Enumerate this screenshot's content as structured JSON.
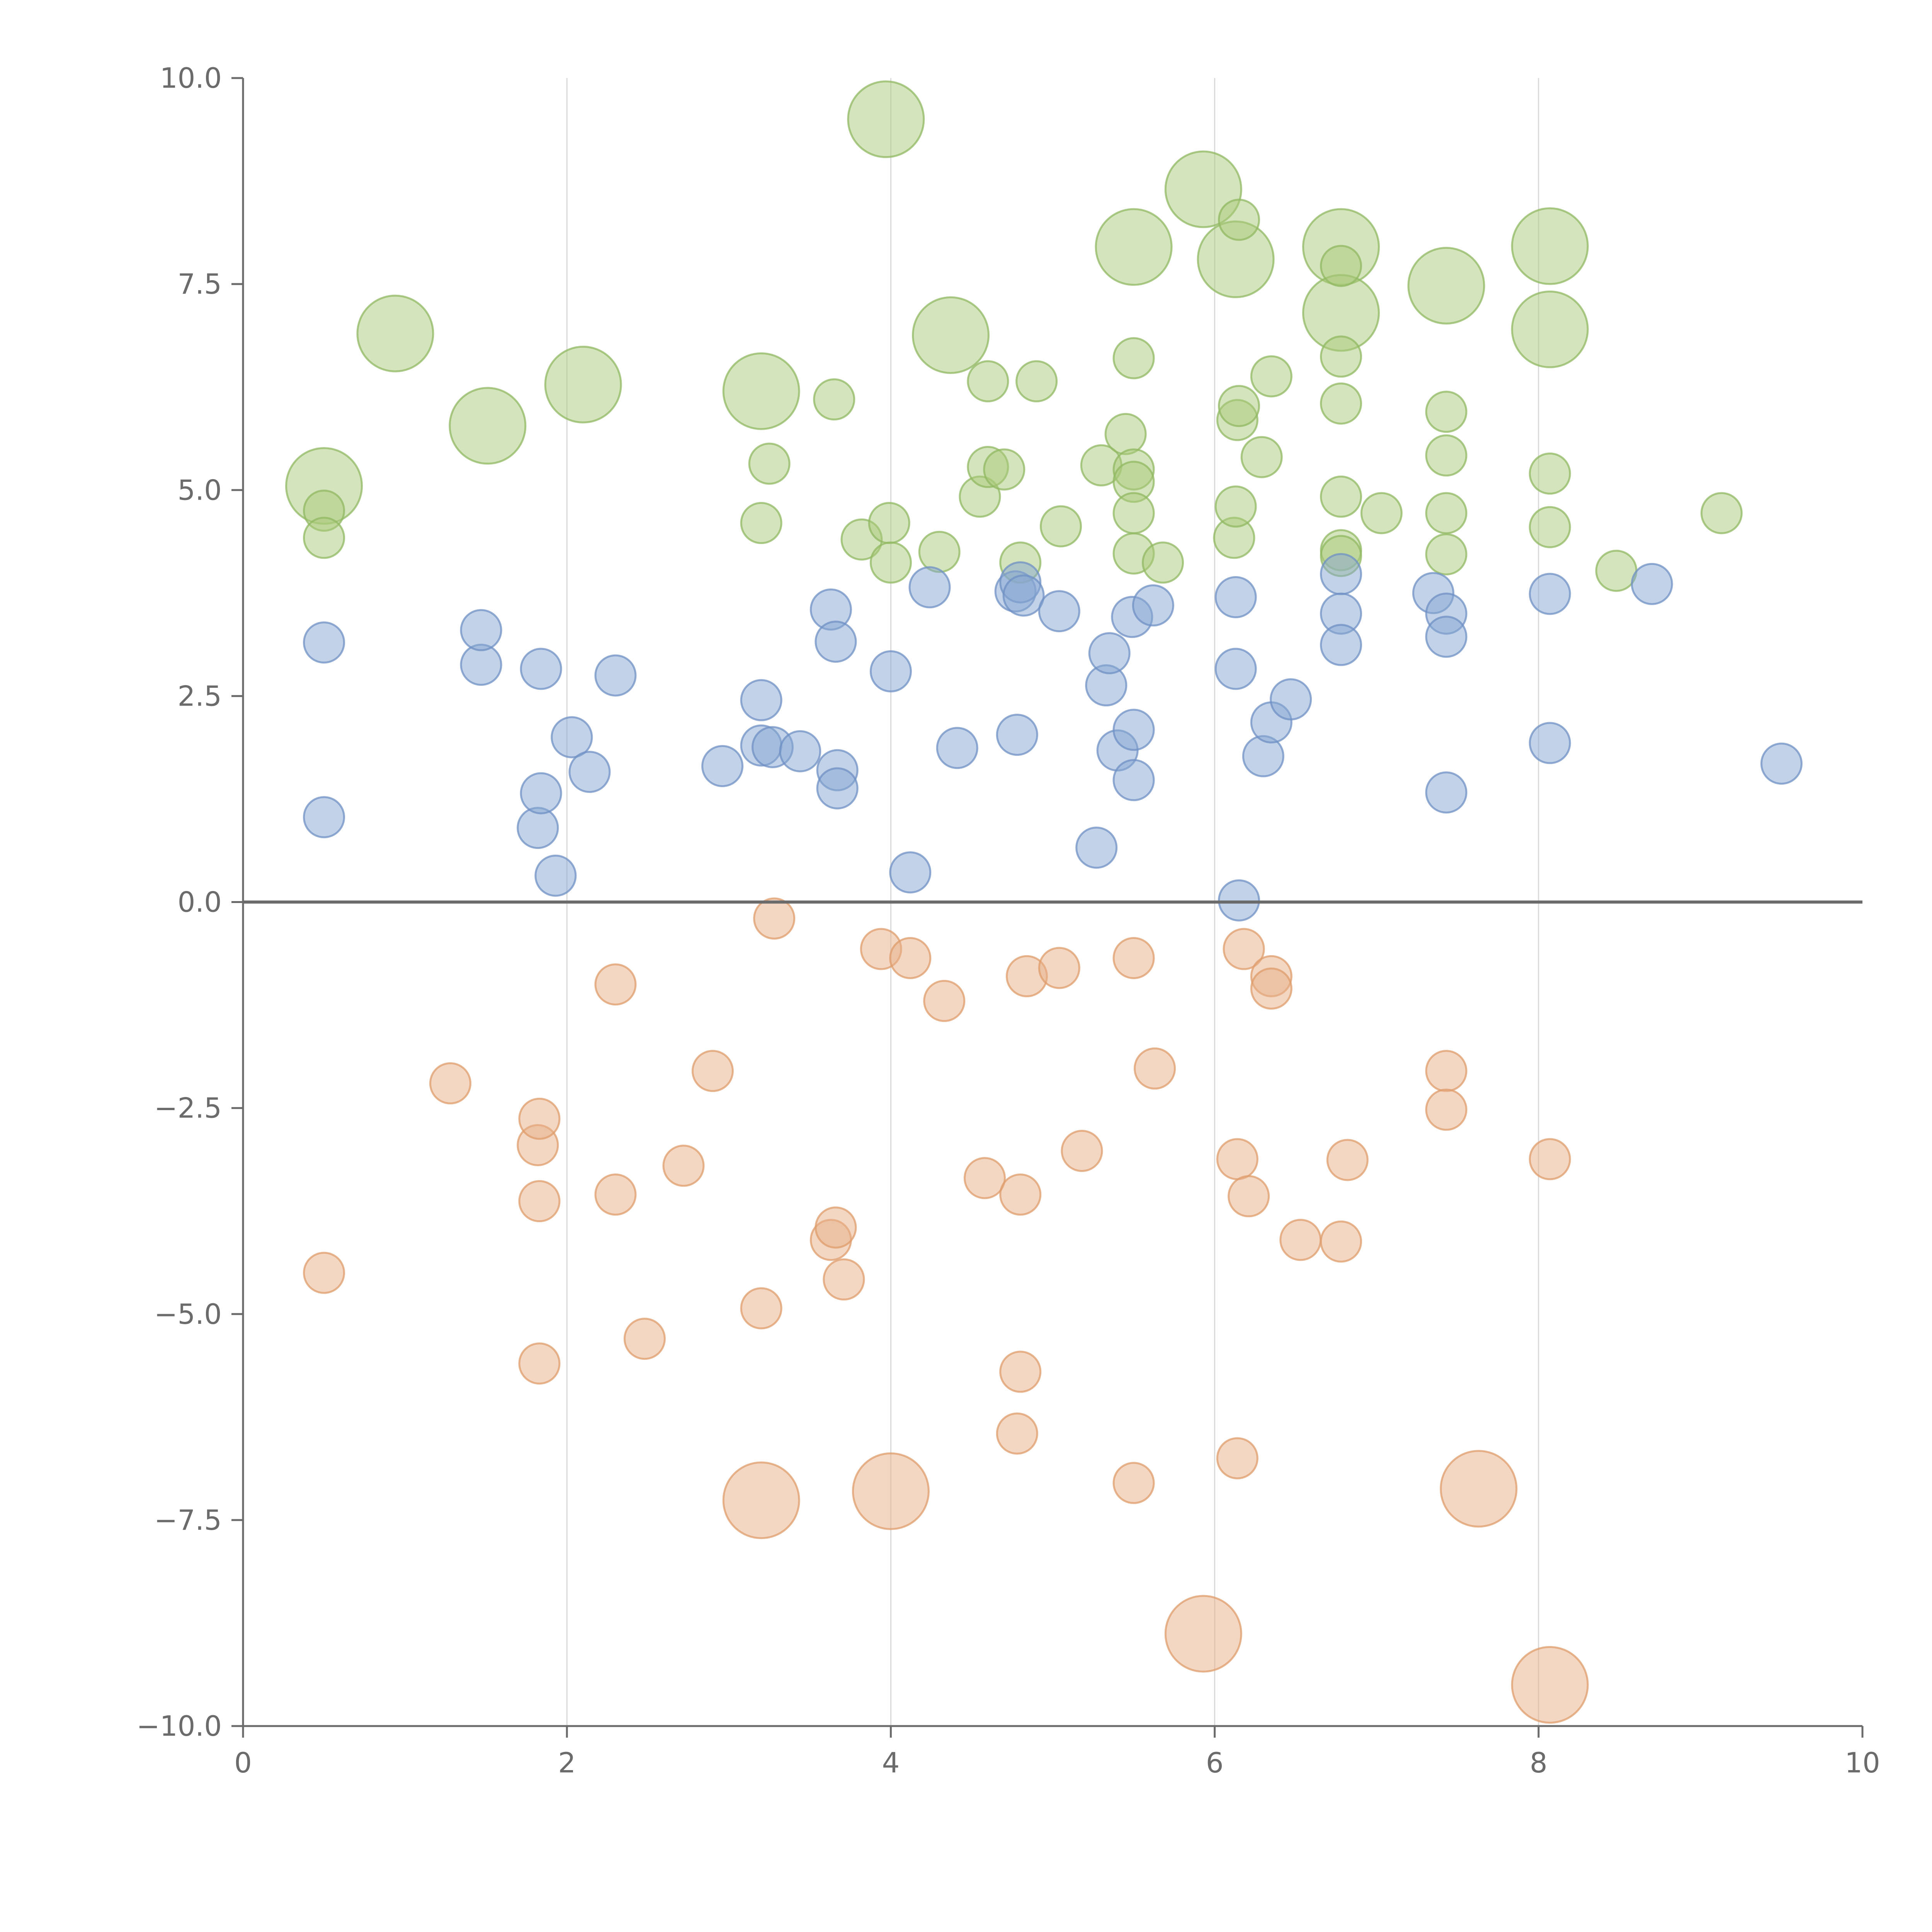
{
  "chart_data": {
    "type": "scatter",
    "title": "",
    "xlabel": "",
    "ylabel": "",
    "xlim": [
      0,
      10
    ],
    "ylim": [
      -10,
      10
    ],
    "x_ticks": [
      0,
      2,
      4,
      6,
      8,
      10
    ],
    "x_tick_labels": [
      "0",
      "2",
      "4",
      "6",
      "8",
      "10"
    ],
    "y_ticks": [
      -10,
      -7.5,
      -5,
      -2.5,
      0,
      2.5,
      5,
      7.5,
      10
    ],
    "y_tick_labels": [
      "−10.0",
      "−7.5",
      "−5.0",
      "−2.5",
      "0.0",
      "2.5",
      "5.0",
      "7.5",
      "10.0"
    ],
    "vertical_gridlines_at": [
      2,
      4,
      6,
      8
    ],
    "reference_line_y": 0,
    "grid": true,
    "legend": "none",
    "series": [
      {
        "name": "green",
        "color": "#a9c97a",
        "stroke": "#90b861",
        "points": [
          [
            0.5,
            5.05,
            2
          ],
          [
            0.94,
            6.9,
            2
          ],
          [
            1.51,
            5.78,
            2
          ],
          [
            2.1,
            6.28,
            2
          ],
          [
            3.2,
            6.2,
            2
          ],
          [
            3.97,
            9.5,
            2
          ],
          [
            4.37,
            6.88,
            2
          ],
          [
            5.93,
            8.65,
            2
          ],
          [
            5.5,
            7.95,
            2
          ],
          [
            6.13,
            7.8,
            2
          ],
          [
            6.78,
            7.95,
            2
          ],
          [
            6.78,
            7.15,
            2
          ],
          [
            7.43,
            7.48,
            2
          ],
          [
            8.07,
            7.96,
            2
          ],
          [
            8.07,
            6.95,
            2
          ],
          [
            0.5,
            4.75,
            1
          ],
          [
            0.5,
            4.42,
            1
          ],
          [
            3.2,
            4.6,
            1
          ],
          [
            3.25,
            5.32,
            1
          ],
          [
            3.65,
            6.1,
            1
          ],
          [
            3.82,
            4.4,
            1
          ],
          [
            3.99,
            4.6,
            1
          ],
          [
            4.0,
            4.12,
            1
          ],
          [
            4.3,
            4.25,
            1
          ],
          [
            4.55,
            4.92,
            1
          ],
          [
            4.6,
            5.28,
            1
          ],
          [
            4.6,
            6.32,
            1
          ],
          [
            4.7,
            5.25,
            1
          ],
          [
            4.8,
            4.12,
            1
          ],
          [
            4.9,
            6.32,
            1
          ],
          [
            5.05,
            4.56,
            1
          ],
          [
            5.3,
            5.3,
            1
          ],
          [
            5.45,
            5.68,
            1
          ],
          [
            5.5,
            5.25,
            1
          ],
          [
            5.5,
            5.1,
            1
          ],
          [
            5.5,
            4.72,
            1
          ],
          [
            5.5,
            4.23,
            1
          ],
          [
            5.5,
            6.6,
            1
          ],
          [
            5.68,
            4.12,
            1
          ],
          [
            6.12,
            4.42,
            1
          ],
          [
            6.13,
            4.8,
            1
          ],
          [
            6.14,
            5.85,
            1
          ],
          [
            6.15,
            6.02,
            1
          ],
          [
            6.15,
            8.28,
            1
          ],
          [
            6.29,
            5.4,
            1
          ],
          [
            6.35,
            6.38,
            1
          ],
          [
            6.78,
            4.92,
            1
          ],
          [
            6.78,
            4.27,
            1
          ],
          [
            6.78,
            4.2,
            1
          ],
          [
            6.78,
            6.05,
            1
          ],
          [
            6.78,
            6.62,
            1
          ],
          [
            6.78,
            7.72,
            1
          ],
          [
            7.03,
            4.72,
            1
          ],
          [
            7.43,
            4.22,
            1
          ],
          [
            7.43,
            4.72,
            1
          ],
          [
            7.43,
            5.42,
            1
          ],
          [
            7.43,
            5.95,
            1
          ],
          [
            8.07,
            4.55,
            1
          ],
          [
            8.07,
            5.2,
            1
          ],
          [
            8.48,
            4.02,
            1
          ],
          [
            9.13,
            4.72,
            1
          ]
        ]
      },
      {
        "name": "blue",
        "color": "#86a5d2",
        "stroke": "#6f90c4",
        "points": [
          [
            0.5,
            3.15,
            1
          ],
          [
            0.5,
            1.03,
            1
          ],
          [
            1.47,
            2.88,
            1
          ],
          [
            1.47,
            3.3,
            1
          ],
          [
            1.82,
            0.9,
            1
          ],
          [
            1.84,
            1.32,
            1
          ],
          [
            1.84,
            2.83,
            1
          ],
          [
            1.93,
            0.32,
            1
          ],
          [
            2.03,
            2.0,
            1
          ],
          [
            2.14,
            1.58,
            1
          ],
          [
            2.3,
            2.75,
            1
          ],
          [
            2.96,
            1.65,
            1
          ],
          [
            3.2,
            2.45,
            1
          ],
          [
            3.2,
            1.9,
            1
          ],
          [
            3.27,
            1.88,
            1
          ],
          [
            3.44,
            1.83,
            1
          ],
          [
            3.63,
            3.55,
            1
          ],
          [
            3.66,
            3.16,
            1
          ],
          [
            3.67,
            1.6,
            1
          ],
          [
            3.67,
            1.38,
            1
          ],
          [
            4.0,
            2.8,
            1
          ],
          [
            4.12,
            0.36,
            1
          ],
          [
            4.24,
            3.82,
            1
          ],
          [
            4.41,
            1.87,
            1
          ],
          [
            4.77,
            3.77,
            1
          ],
          [
            4.8,
            3.88,
            1
          ],
          [
            4.82,
            3.72,
            1
          ],
          [
            4.78,
            2.03,
            1
          ],
          [
            5.04,
            3.53,
            1
          ],
          [
            5.27,
            0.66,
            1
          ],
          [
            5.33,
            2.63,
            1
          ],
          [
            5.35,
            3.02,
            1
          ],
          [
            5.4,
            1.84,
            1
          ],
          [
            5.49,
            3.46,
            1
          ],
          [
            5.5,
            2.09,
            1
          ],
          [
            5.5,
            1.48,
            1
          ],
          [
            5.62,
            3.6,
            1
          ],
          [
            6.13,
            3.7,
            1
          ],
          [
            6.13,
            2.83,
            1
          ],
          [
            6.15,
            0.02,
            1
          ],
          [
            6.3,
            1.77,
            1
          ],
          [
            6.35,
            2.18,
            1
          ],
          [
            6.47,
            2.46,
            1
          ],
          [
            6.78,
            3.98,
            1
          ],
          [
            6.78,
            3.5,
            1
          ],
          [
            6.78,
            3.12,
            1
          ],
          [
            7.35,
            3.75,
            1
          ],
          [
            7.43,
            3.5,
            1
          ],
          [
            7.43,
            3.22,
            1
          ],
          [
            7.43,
            1.33,
            1
          ],
          [
            8.07,
            3.74,
            1
          ],
          [
            8.07,
            1.93,
            1
          ],
          [
            8.7,
            3.86,
            1
          ],
          [
            9.5,
            1.68,
            1
          ]
        ]
      },
      {
        "name": "orange",
        "color": "#e8b088",
        "stroke": "#df9c6b",
        "points": [
          [
            3.2,
            -7.26,
            2
          ],
          [
            4.0,
            -7.15,
            2
          ],
          [
            5.93,
            -8.88,
            2
          ],
          [
            7.63,
            -7.12,
            2
          ],
          [
            8.07,
            -9.5,
            2
          ],
          [
            0.5,
            -4.5,
            1
          ],
          [
            1.28,
            -2.2,
            1
          ],
          [
            1.82,
            -2.95,
            1
          ],
          [
            1.83,
            -2.63,
            1
          ],
          [
            1.83,
            -3.63,
            1
          ],
          [
            1.83,
            -5.6,
            1
          ],
          [
            2.3,
            -1.0,
            1
          ],
          [
            2.3,
            -3.55,
            1
          ],
          [
            2.48,
            -5.3,
            1
          ],
          [
            2.72,
            -3.2,
            1
          ],
          [
            2.9,
            -2.05,
            1
          ],
          [
            3.2,
            -4.93,
            1
          ],
          [
            3.28,
            -0.2,
            1
          ],
          [
            3.63,
            -4.1,
            1
          ],
          [
            3.66,
            -3.95,
            1
          ],
          [
            3.71,
            -4.58,
            1
          ],
          [
            3.94,
            -0.57,
            1
          ],
          [
            4.12,
            -0.68,
            1
          ],
          [
            4.33,
            -1.2,
            1
          ],
          [
            4.58,
            -3.35,
            1
          ],
          [
            4.8,
            -3.55,
            1
          ],
          [
            4.8,
            -5.7,
            1
          ],
          [
            4.78,
            -6.45,
            1
          ],
          [
            4.84,
            -0.9,
            1
          ],
          [
            5.04,
            -0.8,
            1
          ],
          [
            5.18,
            -3.02,
            1
          ],
          [
            5.5,
            -0.68,
            1
          ],
          [
            5.5,
            -7.05,
            1
          ],
          [
            5.63,
            -2.02,
            1
          ],
          [
            6.14,
            -3.12,
            1
          ],
          [
            6.14,
            -6.75,
            1
          ],
          [
            6.18,
            -0.57,
            1
          ],
          [
            6.21,
            -3.57,
            1
          ],
          [
            6.35,
            -0.9,
            1
          ],
          [
            6.35,
            -1.05,
            1
          ],
          [
            6.53,
            -4.1,
            1
          ],
          [
            6.78,
            -4.12,
            1
          ],
          [
            6.82,
            -3.13,
            1
          ],
          [
            7.43,
            -2.05,
            1
          ],
          [
            7.43,
            -2.52,
            1
          ],
          [
            8.07,
            -3.12,
            1
          ]
        ]
      }
    ]
  }
}
